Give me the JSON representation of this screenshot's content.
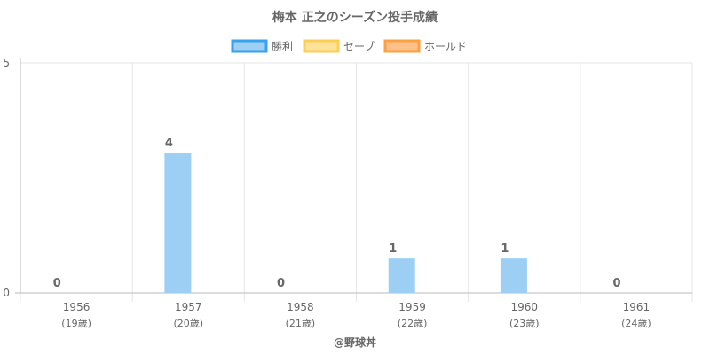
{
  "chart_data": {
    "type": "bar",
    "title": "梅本 正之のシーズン投手成績",
    "categories": [
      "1956",
      "1957",
      "1958",
      "1959",
      "1960",
      "1961"
    ],
    "age_labels": [
      "(19歳)",
      "(20歳)",
      "(21歳)",
      "(22歳)",
      "(23歳)",
      "(24歳)"
    ],
    "series": [
      {
        "name": "勝利",
        "values": [
          0,
          4,
          0,
          1,
          1,
          0
        ],
        "bar_heights": [
          0,
          3.05,
          0,
          0.75,
          0.75,
          0
        ],
        "fill": "#9dcff5",
        "stroke": "#36a2eb"
      },
      {
        "name": "セーブ",
        "values": [
          null,
          null,
          null,
          null,
          null,
          null
        ],
        "fill": "#ffe29a",
        "stroke": "#ffcd56"
      },
      {
        "name": "ホールド",
        "values": [
          null,
          null,
          null,
          null,
          null,
          null
        ],
        "fill": "#ffc08a",
        "stroke": "#ff9f40"
      }
    ],
    "data_labels": [
      "0",
      "4",
      "0",
      "1",
      "1",
      "0"
    ],
    "ylim": [
      0,
      5
    ],
    "y_ticks": [
      "0",
      "5"
    ],
    "legend_position": "top",
    "grid": true
  },
  "credit": "@野球丼"
}
